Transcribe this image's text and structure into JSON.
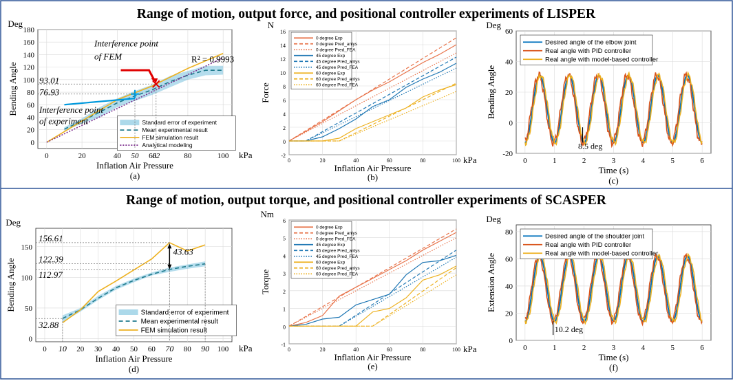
{
  "figure": {
    "top_title": "Range of motion, output force, and positional controller experiments of LISPER",
    "bottom_title": "Range of motion, output torque, and positional controller experiments of SCASPER",
    "border_color": "#2f5597"
  },
  "chart_data": [
    {
      "id": "a",
      "type": "line",
      "panel_label": "(a)",
      "ylabel": "Bending Angle",
      "yunit": "Deg",
      "xlabel": "Inflation Air Pressure",
      "xunit": "kPa",
      "xlim": [
        -5,
        105
      ],
      "ylim": [
        -10,
        180
      ],
      "xticks": [
        0,
        20,
        40,
        60,
        80,
        100
      ],
      "yticks": [
        0,
        20,
        40,
        60,
        80,
        100,
        120,
        140,
        160,
        180
      ],
      "extra_xticks": [
        {
          "label": "50",
          "value": 50
        },
        {
          "label": "62",
          "value": 62
        }
      ],
      "grid": true,
      "legend_position": "lower-right",
      "annotations": {
        "fem_title": "Interference point of FEM",
        "exp_title": "Interference point of experiment",
        "r2": "R² = 0.9993",
        "v1": "93.01",
        "v2": "76.93"
      },
      "series": [
        {
          "name": "Standard error of experiment",
          "kind": "band",
          "color": "#5ab4d6",
          "x": [
            10,
            20,
            30,
            40,
            50,
            60,
            70,
            80,
            90,
            100
          ],
          "lower": [
            18,
            30,
            40,
            56,
            66,
            76,
            88,
            100,
            107,
            108
          ],
          "upper": [
            24,
            38,
            56,
            70,
            82,
            92,
            106,
            114,
            122,
            122
          ]
        },
        {
          "name": "Mean experimental result",
          "kind": "line",
          "dash": "6,4",
          "color": "#1f7a8c",
          "x": [
            10,
            20,
            30,
            40,
            50,
            60,
            70,
            80,
            90,
            100
          ],
          "y": [
            21,
            34,
            48,
            63,
            74,
            84,
            97,
            107,
            115,
            115
          ]
        },
        {
          "name": "FEM simulation result",
          "kind": "line",
          "color": "#edb120",
          "x": [
            0,
            20,
            40,
            60,
            62,
            80,
            100
          ],
          "y": [
            0,
            34,
            68,
            90,
            93,
            118,
            142
          ]
        },
        {
          "name": "Analytical modeling",
          "kind": "line",
          "dash": "2,2",
          "color": "#7e2f8e",
          "x": [
            0,
            100
          ],
          "y": [
            0,
            135
          ]
        }
      ],
      "extra_lines": [
        {
          "x": [
            10,
            50
          ],
          "y": [
            60,
            70
          ],
          "color": "#0099dd"
        }
      ]
    },
    {
      "id": "b",
      "type": "line",
      "panel_label": "(b)",
      "ylabel": "Force",
      "yunit": "N",
      "xlabel": "Inflation Air Pressure",
      "xunit": "kPa",
      "xlim": [
        0,
        100
      ],
      "ylim": [
        -2,
        16
      ],
      "xticks": [
        0,
        20,
        40,
        60,
        80,
        100
      ],
      "yticks": [
        -2,
        0,
        2,
        4,
        6,
        8,
        10,
        12,
        14,
        16
      ],
      "grid": true,
      "legend_position": "top-left",
      "series": [
        {
          "name": "0 degree Exp",
          "kind": "line",
          "color": "#e8734a",
          "x": [
            0,
            10,
            20,
            30,
            40,
            50,
            60,
            70,
            80,
            90,
            100
          ],
          "y": [
            0,
            1.4,
            2.8,
            4.4,
            6.0,
            7.4,
            8.6,
            10.0,
            11.4,
            12.6,
            14.0
          ]
        },
        {
          "name": "0 degree Pred_anlys",
          "kind": "line",
          "dash": "5,3",
          "color": "#e8734a",
          "x": [
            0,
            100
          ],
          "y": [
            0,
            15.0
          ]
        },
        {
          "name": "0 degree Pred_FEA",
          "kind": "line",
          "dash": "1.5,2",
          "color": "#e8734a",
          "x": [
            0,
            100
          ],
          "y": [
            0,
            12.8
          ]
        },
        {
          "name": "45 degree Exp",
          "kind": "line",
          "color": "#1f77b4",
          "x": [
            0,
            10,
            20,
            30,
            40,
            50,
            60,
            70,
            80,
            90,
            100
          ],
          "y": [
            0,
            0,
            0.6,
            1.8,
            3.2,
            5.0,
            6.0,
            7.8,
            9.0,
            10.0,
            11.3
          ]
        },
        {
          "name": "45 degree Pred_anlys",
          "kind": "line",
          "dash": "5,3",
          "color": "#1f77b4",
          "x": [
            0,
            10,
            100
          ],
          "y": [
            0,
            0,
            12.2
          ]
        },
        {
          "name": "45 degree Pred_FEA",
          "kind": "line",
          "dash": "1.5,2",
          "color": "#1f77b4",
          "x": [
            0,
            10,
            100
          ],
          "y": [
            0,
            0,
            10.6
          ]
        },
        {
          "name": "60 degree Exp",
          "kind": "line",
          "color": "#edb120",
          "x": [
            0,
            10,
            20,
            30,
            40,
            50,
            60,
            70,
            80,
            90,
            100
          ],
          "y": [
            0,
            0,
            0,
            0.4,
            1.8,
            2.8,
            3.8,
            4.8,
            6.4,
            7.4,
            8.2
          ]
        },
        {
          "name": "60 degree Pred_anlys",
          "kind": "line",
          "dash": "5,3",
          "color": "#edb120",
          "x": [
            0,
            30,
            100
          ],
          "y": [
            0,
            0,
            8.4
          ]
        },
        {
          "name": "60 degree Pred_FEA",
          "kind": "line",
          "dash": "1.5,2",
          "color": "#edb120",
          "x": [
            0,
            30,
            100
          ],
          "y": [
            0,
            0,
            7.2
          ]
        }
      ]
    },
    {
      "id": "c",
      "type": "line",
      "panel_label": "(c)",
      "ylabel": "Bending Angle",
      "yunit": "Deg",
      "xlabel": "Time (s)",
      "xunit": "",
      "xlim": [
        -0.3,
        6.3
      ],
      "ylim": [
        -20,
        60
      ],
      "xticks": [
        0,
        1,
        2,
        3,
        4,
        5,
        6
      ],
      "yticks": [
        -20,
        0,
        20,
        40,
        60
      ],
      "grid": true,
      "legend_position": "top",
      "annotations": {
        "error": "8.5 deg"
      },
      "signal": {
        "amplitude": 22,
        "offset": 9,
        "period": 1.0
      },
      "series": [
        {
          "name": "Desired angle of the elbow joint",
          "color": "#0072bd",
          "phase": 0,
          "noise": 0
        },
        {
          "name": "Real angle with PID controller",
          "color": "#d95319",
          "phase": 0.04,
          "noise": 3
        },
        {
          "name": "Real angle with model-based controller",
          "color": "#edb120",
          "phase": -0.03,
          "noise": 2
        }
      ]
    },
    {
      "id": "d",
      "type": "line",
      "panel_label": "(d)",
      "ylabel": "Bending Angle",
      "yunit": "Deg",
      "xlabel": "Inflation Air Pressure",
      "xunit": "kPa",
      "xlim": [
        -5,
        105
      ],
      "ylim": [
        -5,
        180
      ],
      "xticks": [
        0,
        10,
        20,
        30,
        40,
        50,
        60,
        70,
        80,
        90,
        100
      ],
      "yticks": [
        0,
        50,
        100,
        150
      ],
      "italic_xticks": [
        10,
        70,
        90
      ],
      "grid": true,
      "legend_position": "bottom-right",
      "annotations": {
        "v1": "156.61",
        "v2": "122.39",
        "v3": "112.97",
        "v4": "32.88",
        "diff": "43.63"
      },
      "series": [
        {
          "name": "Standard error of experiment",
          "kind": "band",
          "color": "#5ab4d6",
          "x": [
            10,
            20,
            30,
            40,
            50,
            60,
            70,
            80,
            90
          ],
          "lower": [
            27,
            44,
            63,
            80,
            92,
            103,
            109,
            114,
            118
          ],
          "upper": [
            38,
            50,
            70,
            86,
            98,
            108,
            116,
            121,
            126
          ]
        },
        {
          "name": "Mean experimental result",
          "kind": "line",
          "dash": "6,4",
          "color": "#1f7a8c",
          "x": [
            10,
            20,
            30,
            40,
            50,
            60,
            70,
            80,
            90
          ],
          "y": [
            33,
            47,
            66,
            83,
            95,
            105,
            113,
            118,
            122
          ]
        },
        {
          "name": "FEM simulation result",
          "kind": "line",
          "color": "#edb120",
          "x": [
            10,
            20,
            30,
            40,
            50,
            60,
            70,
            80,
            90
          ],
          "y": [
            26,
            47,
            77,
            94,
            112,
            130,
            156.61,
            143,
            153
          ]
        }
      ]
    },
    {
      "id": "e",
      "type": "line",
      "panel_label": "(e)",
      "ylabel": "Torque",
      "yunit": "Nm",
      "xlabel": "Inflation Air Pressure",
      "xunit": "kPa",
      "xlim": [
        0,
        100
      ],
      "ylim": [
        -1,
        6
      ],
      "xticks": [
        0,
        20,
        40,
        60,
        80,
        100
      ],
      "yticks": [
        -1,
        0,
        1,
        2,
        3,
        4,
        5,
        6
      ],
      "grid": true,
      "legend_position": "top-left",
      "series": [
        {
          "name": "0 degree Exp",
          "kind": "line",
          "color": "#e8734a",
          "x": [
            0,
            10,
            20,
            30,
            40,
            50,
            60,
            70,
            80,
            90,
            100
          ],
          "y": [
            0,
            0.2,
            0.6,
            1.7,
            2.2,
            2.7,
            3.2,
            3.7,
            4.3,
            4.8,
            5.3
          ]
        },
        {
          "name": "0 degree Pred_anlys",
          "kind": "line",
          "dash": "5,3",
          "color": "#e8734a",
          "x": [
            0,
            100
          ],
          "y": [
            0,
            5.5
          ]
        },
        {
          "name": "0 degree Pred_FEA",
          "kind": "line",
          "dash": "1.5,2",
          "color": "#e8734a",
          "x": [
            0,
            100
          ],
          "y": [
            0,
            5.0
          ]
        },
        {
          "name": "45 degree Exp",
          "kind": "line",
          "color": "#1f77b4",
          "x": [
            0,
            10,
            20,
            30,
            40,
            50,
            60,
            70,
            80,
            90,
            100
          ],
          "y": [
            0,
            0.1,
            0.4,
            0.5,
            1.2,
            1.5,
            1.8,
            2.9,
            3.6,
            3.7,
            4.0
          ]
        },
        {
          "name": "45 degree Pred_anlys",
          "kind": "line",
          "dash": "5,3",
          "color": "#1f77b4",
          "x": [
            0,
            30,
            100
          ],
          "y": [
            0,
            0,
            4.3
          ]
        },
        {
          "name": "45 degree Pred_FEA",
          "kind": "line",
          "dash": "1.5,2",
          "color": "#1f77b4",
          "x": [
            0,
            30,
            100
          ],
          "y": [
            0,
            0,
            3.9
          ]
        },
        {
          "name": "60 degree Exp",
          "kind": "line",
          "color": "#edb120",
          "x": [
            0,
            10,
            20,
            30,
            40,
            50,
            60,
            70,
            80,
            90,
            100
          ],
          "y": [
            0,
            0,
            0,
            0,
            0,
            0.8,
            1.0,
            1.6,
            2.6,
            2.9,
            3.4
          ]
        },
        {
          "name": "60 degree Pred_anlys",
          "kind": "line",
          "dash": "5,3",
          "color": "#edb120",
          "x": [
            0,
            50,
            100
          ],
          "y": [
            0,
            0,
            3.3
          ]
        },
        {
          "name": "60 degree Pred_FEA",
          "kind": "line",
          "dash": "1.5,2",
          "color": "#edb120",
          "x": [
            0,
            50,
            100
          ],
          "y": [
            0,
            0,
            2.9
          ]
        }
      ]
    },
    {
      "id": "f",
      "type": "line",
      "panel_label": "(f)",
      "ylabel": "Extension Angle",
      "yunit": "Deg",
      "xlabel": "Time (s)",
      "xunit": "",
      "xlim": [
        -0.3,
        6.3
      ],
      "ylim": [
        0,
        85
      ],
      "xticks": [
        0,
        1,
        2,
        3,
        4,
        5,
        6
      ],
      "yticks": [
        0,
        20,
        40,
        60,
        80
      ],
      "grid": true,
      "legend_position": "top",
      "annotations": {
        "error": "10.2 deg"
      },
      "signal": {
        "amplitude": 24,
        "offset": 38,
        "period": 1.0
      },
      "series": [
        {
          "name": "Desired angle of the shoulder joint",
          "color": "#0072bd",
          "phase": 0,
          "noise": 0
        },
        {
          "name": "Real angle with PID controller",
          "color": "#d95319",
          "phase": 0.04,
          "noise": 2.5
        },
        {
          "name": "Real angle with model-based controller",
          "color": "#edb120",
          "phase": -0.04,
          "noise": 2
        }
      ]
    }
  ]
}
